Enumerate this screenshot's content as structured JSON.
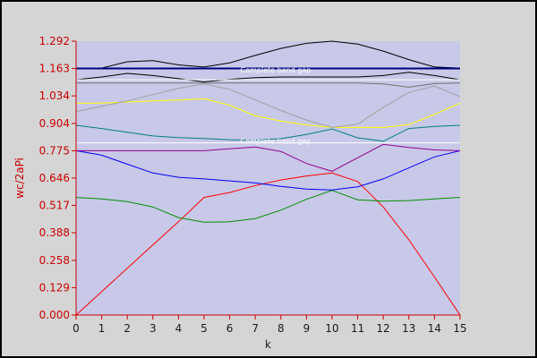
{
  "chart_data": {
    "type": "line",
    "title": "",
    "xlabel": "k",
    "ylabel": "wc/2aPi",
    "xlim": [
      0,
      15
    ],
    "ylim": [
      0,
      1.292
    ],
    "x_ticks": [
      "0",
      "1",
      "2",
      "3",
      "4",
      "5",
      "6",
      "7",
      "8",
      "9",
      "10",
      "11",
      "12",
      "13",
      "14",
      "15"
    ],
    "y_ticks": [
      "0.000",
      "0.129",
      "0.258",
      "0.388",
      "0.517",
      "0.646",
      "0.775",
      "0.904",
      "1.034",
      "1.163",
      "1.292"
    ],
    "y_tick_values": [
      0,
      0.129,
      0.258,
      0.388,
      0.517,
      0.646,
      0.775,
      0.904,
      1.034,
      1.163,
      1.292
    ],
    "grid": false,
    "legend": "none",
    "colors": {
      "frame_background": "#d5d5d5",
      "plot_background": "#c8c8e8",
      "axis": "#cc0000",
      "x_tick_text": "#1a1a1a"
    },
    "x": [
      0,
      1,
      2,
      3,
      4,
      5,
      6,
      7,
      8,
      9,
      10,
      11,
      12,
      13,
      14,
      15
    ],
    "series": [
      {
        "color": "#ff0000",
        "values": [
          0.0,
          0.11,
          0.221,
          0.331,
          0.44,
          0.555,
          0.578,
          0.611,
          0.637,
          0.656,
          0.67,
          0.63,
          0.51,
          0.355,
          0.18,
          0.0
        ]
      },
      {
        "color": "#009000",
        "values": [
          0.555,
          0.548,
          0.535,
          0.51,
          0.46,
          0.438,
          0.44,
          0.455,
          0.495,
          0.546,
          0.588,
          0.544,
          0.537,
          0.54,
          0.548,
          0.555
        ]
      },
      {
        "color": "#0000ff",
        "values": [
          0.775,
          0.754,
          0.712,
          0.67,
          0.65,
          0.642,
          0.633,
          0.623,
          0.607,
          0.594,
          0.59,
          0.605,
          0.642,
          0.694,
          0.746,
          0.775
        ]
      },
      {
        "color": "#900090",
        "values": [
          0.775,
          0.775,
          0.775,
          0.775,
          0.775,
          0.775,
          0.784,
          0.793,
          0.772,
          0.715,
          0.678,
          0.742,
          0.805,
          0.791,
          0.779,
          0.775
        ]
      },
      {
        "color": "#008080",
        "values": [
          0.895,
          0.88,
          0.862,
          0.845,
          0.837,
          0.833,
          0.827,
          0.825,
          0.832,
          0.852,
          0.878,
          0.836,
          0.82,
          0.88,
          0.89,
          0.895
        ]
      },
      {
        "color": "#ffff00",
        "values": [
          1.0,
          1.0,
          1.005,
          1.01,
          1.014,
          1.02,
          0.99,
          0.94,
          0.915,
          0.897,
          0.885,
          0.885,
          0.885,
          0.898,
          0.946,
          1.0
        ]
      },
      {
        "color": "#a0a0a0",
        "values": [
          0.96,
          0.985,
          1.01,
          1.04,
          1.07,
          1.09,
          1.065,
          1.015,
          0.965,
          0.92,
          0.885,
          0.9,
          0.98,
          1.05,
          1.08,
          1.03
        ]
      },
      {
        "color": "#707070",
        "values": [
          1.095,
          1.095,
          1.095,
          1.095,
          1.095,
          1.095,
          1.095,
          1.095,
          1.095,
          1.095,
          1.095,
          1.095,
          1.09,
          1.075,
          1.092,
          1.095
        ]
      },
      {
        "color": "#000000",
        "values": [
          1.11,
          1.123,
          1.14,
          1.13,
          1.115,
          1.1,
          1.112,
          1.12,
          1.123,
          1.123,
          1.123,
          1.123,
          1.13,
          1.145,
          1.13,
          1.11
        ]
      },
      {
        "color": "#000000",
        "values": [
          1.165,
          1.165,
          1.195,
          1.2,
          1.18,
          1.17,
          1.19,
          1.225,
          1.258,
          1.282,
          1.292,
          1.278,
          1.245,
          1.205,
          1.17,
          1.165
        ]
      }
    ],
    "reference_lines": [
      {
        "y": 1.163,
        "color": "#000080",
        "width": 2
      },
      {
        "y": 1.11,
        "color": "#ffffff",
        "width": 1
      },
      {
        "y": 0.812,
        "color": "#ffffff",
        "width": 1
      }
    ],
    "gap_labels": [
      {
        "text": "Complete   band gap",
        "y": 1.145,
        "x_center": 7.8
      },
      {
        "text": "Complete   band gap",
        "y": 0.809,
        "x_center": 7.8
      }
    ]
  }
}
